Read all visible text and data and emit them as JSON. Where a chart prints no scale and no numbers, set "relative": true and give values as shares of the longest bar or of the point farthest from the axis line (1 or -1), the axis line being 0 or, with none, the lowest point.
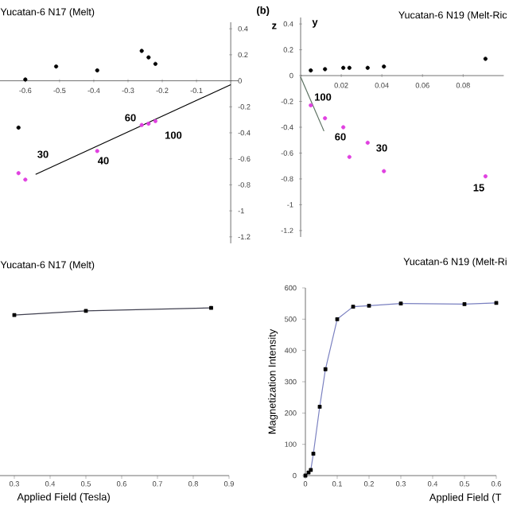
{
  "chart_data": [
    {
      "type": "scatter",
      "title": "Yucatan-6 N17 (Melt)",
      "marker": "circle",
      "xlim": [
        -0.674,
        0.023
      ],
      "ylim": [
        -1.25,
        0.45
      ],
      "xticks": [
        -0.6,
        -0.5,
        -0.4,
        -0.3,
        -0.2,
        -0.1
      ],
      "yticks": [
        0.4,
        0.2,
        0,
        -0.2,
        -0.4,
        -0.6,
        -0.8,
        -1,
        -1.2
      ],
      "series": [
        {
          "color": "#000000",
          "x": [
            -0.6,
            -0.51,
            -0.39,
            -0.26,
            -0.24,
            -0.22,
            -0.62
          ],
          "values": [
            0.01,
            0.11,
            0.08,
            0.23,
            0.18,
            0.13,
            -0.36
          ]
        },
        {
          "color": "#e040e0",
          "x": [
            -0.62,
            -0.6,
            -0.39,
            -0.26,
            -0.24,
            -0.22
          ],
          "values": [
            -0.71,
            -0.76,
            -0.54,
            -0.34,
            -0.33,
            -0.31
          ]
        },
        {
          "type": "line",
          "marker": "none",
          "color": "#000000",
          "x": [
            -0.57,
            0
          ],
          "values": [
            -0.72,
            -0.03
          ]
        }
      ],
      "annotations": [
        "30",
        "60",
        "40",
        "100"
      ]
    },
    {
      "type": "scatter",
      "title": "Yucatan-6 N19 (Melt-Ric",
      "ylabel": "z",
      "marker": "circle",
      "xlim": [
        0,
        0.1
      ],
      "ylim": [
        -1.25,
        0.45
      ],
      "xticks": [
        0.02,
        0.04,
        0.06,
        0.08
      ],
      "yticks": [
        0.4,
        0.2,
        0,
        -0.2,
        -0.4,
        -0.6,
        -0.8,
        -1,
        -1.2
      ],
      "series": [
        {
          "color": "#000000",
          "x": [
            0.005,
            0.012,
            0.021,
            0.024,
            0.033,
            0.041,
            0.091
          ],
          "values": [
            0.04,
            0.05,
            0.06,
            0.06,
            0.06,
            0.07,
            0.13
          ]
        },
        {
          "color": "#e040e0",
          "x": [
            0.005,
            0.012,
            0.021,
            0.024,
            0.033,
            0.041,
            0.091
          ],
          "values": [
            -0.23,
            -0.33,
            -0.4,
            -0.63,
            -0.52,
            -0.74,
            -0.78
          ]
        },
        {
          "type": "line",
          "marker": "none",
          "color": "#5a7060",
          "x": [
            0,
            0.0115
          ],
          "values": [
            -0.01,
            -0.43
          ]
        }
      ],
      "annotations": [
        "(b)",
        "y",
        "100",
        "60",
        "30",
        "15"
      ]
    },
    {
      "type": "line",
      "title": "Yucatan-6 N17 (Melt)",
      "xlabel": "Applied Field (Tesla)",
      "relative": true,
      "marker": "square",
      "xlim": [
        0.26,
        0.9
      ],
      "xticks": [
        0.3,
        0.4,
        0.5,
        0.6,
        0.7,
        0.8,
        0.9
      ],
      "series": [
        {
          "color": "#404050",
          "x": [
            0.3,
            0.5,
            0.85
          ],
          "values": [
            0.957,
            0.982,
            1
          ]
        }
      ]
    },
    {
      "type": "line",
      "title": "Yucatan-6 N19 (Melt-Ri",
      "xlabel": "Applied Field (T",
      "ylabel": "Magnetization Intensity",
      "marker": "square",
      "xlim": [
        0,
        0.6
      ],
      "ylim": [
        0,
        600
      ],
      "xticks": [
        0,
        0.1,
        0.2,
        0.3,
        0.4,
        0.5,
        0.6
      ],
      "yticks": [
        0,
        100,
        200,
        300,
        400,
        500,
        600
      ],
      "series": [
        {
          "color": "#7a80c0",
          "x": [
            0,
            0.01,
            0.017,
            0.025,
            0.045,
            0.063,
            0.1,
            0.15,
            0.2,
            0.3,
            0.5,
            0.6
          ],
          "values": [
            0,
            10,
            18,
            70,
            220,
            340,
            500,
            540,
            543,
            550,
            548,
            552
          ]
        }
      ]
    }
  ]
}
